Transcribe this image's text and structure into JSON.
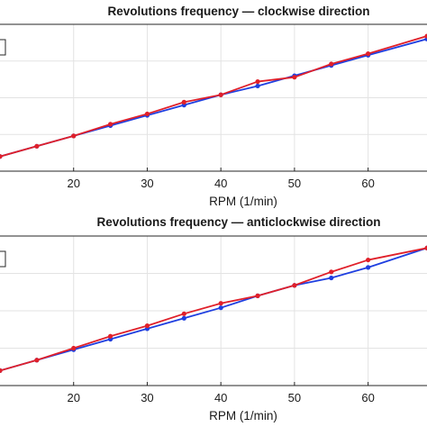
{
  "chart_data": [
    {
      "type": "line",
      "title": "Revolutions frequency — clockwise direction",
      "xlabel": "RPM (1/min)",
      "ylabel": "",
      "xlim": [
        10,
        68
      ],
      "ylim": [
        0,
        1
      ],
      "xticks": [
        20,
        30,
        40,
        50,
        60
      ],
      "grid": true,
      "legend": "top-left",
      "series": [
        {
          "color": "#1f3fe0",
          "x": [
            10,
            15,
            20,
            25,
            30,
            35,
            40,
            45,
            50,
            55,
            60,
            68
          ],
          "y": [
            0.1,
            0.17,
            0.24,
            0.31,
            0.38,
            0.45,
            0.52,
            0.58,
            0.65,
            0.72,
            0.79,
            0.9
          ]
        },
        {
          "color": "#e0202a",
          "x": [
            10,
            15,
            20,
            25,
            30,
            35,
            40,
            45,
            50,
            55,
            60,
            68
          ],
          "y": [
            0.1,
            0.17,
            0.24,
            0.32,
            0.39,
            0.47,
            0.52,
            0.61,
            0.64,
            0.73,
            0.8,
            0.92
          ]
        }
      ]
    },
    {
      "type": "line",
      "title": "Revolutions frequency — anticlockwise direction",
      "xlabel": "RPM (1/min)",
      "ylabel": "",
      "xlim": [
        10,
        68
      ],
      "ylim": [
        0,
        1
      ],
      "xticks": [
        20,
        30,
        40,
        50,
        60
      ],
      "grid": true,
      "legend": "top-left",
      "series": [
        {
          "color": "#1f3fe0",
          "x": [
            10,
            15,
            20,
            25,
            30,
            35,
            40,
            45,
            50,
            55,
            60,
            68
          ],
          "y": [
            0.1,
            0.17,
            0.24,
            0.31,
            0.38,
            0.45,
            0.52,
            0.6,
            0.67,
            0.72,
            0.79,
            0.92
          ]
        },
        {
          "color": "#e0202a",
          "x": [
            10,
            15,
            20,
            25,
            30,
            35,
            40,
            45,
            50,
            55,
            60,
            68
          ],
          "y": [
            0.1,
            0.17,
            0.25,
            0.33,
            0.4,
            0.48,
            0.55,
            0.6,
            0.67,
            0.76,
            0.84,
            0.92
          ]
        }
      ]
    }
  ]
}
